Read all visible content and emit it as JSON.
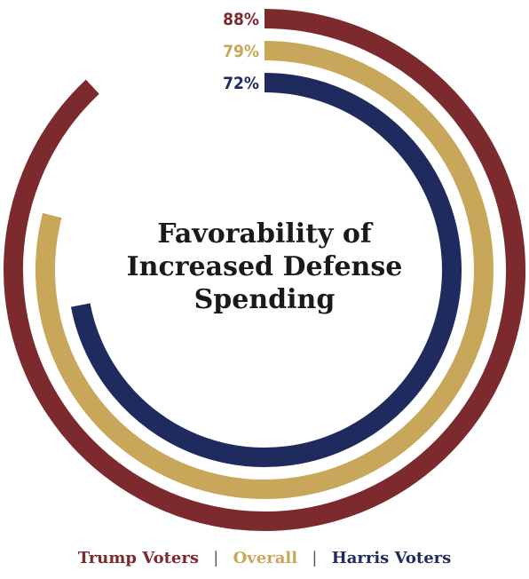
{
  "chart_data": {
    "type": "radial-bar",
    "title_lines": [
      "Favorability of",
      "Increased Defense",
      "Spending"
    ],
    "value_unit": "%",
    "max": 100,
    "series": [
      {
        "name": "Trump Voters",
        "value": 88,
        "label": "88%",
        "color": "#7d2a2e"
      },
      {
        "name": "Overall",
        "value": 79,
        "label": "79%",
        "color": "#c9a75a"
      },
      {
        "name": "Harris Voters",
        "value": 72,
        "label": "72%",
        "color": "#1f2a5e"
      }
    ],
    "legend": {
      "position": "bottom",
      "separator": "|"
    }
  }
}
